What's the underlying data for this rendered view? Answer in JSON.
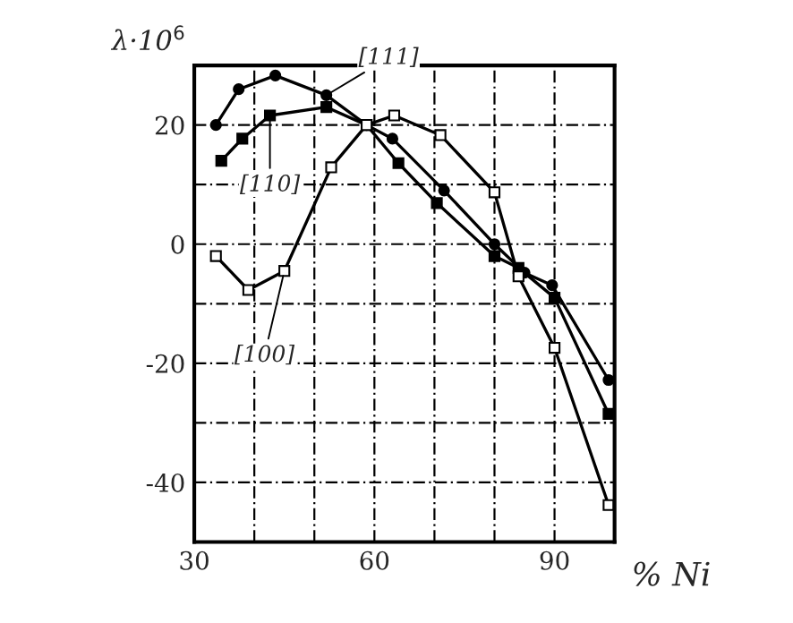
{
  "chart_data": {
    "type": "line",
    "xlabel": "% Ni",
    "ylabel": "λ·10$^{6}$",
    "xlim": [
      30,
      100
    ],
    "ylim": [
      -50,
      30
    ],
    "xticks": [
      30,
      {
        "value": 40,
        "label": null
      },
      {
        "value": 50,
        "label": null
      },
      60,
      {
        "value": 70,
        "label": null
      },
      {
        "value": 80,
        "label": null
      },
      90
    ],
    "yticks": [
      -40,
      {
        "value": -30,
        "label": null
      },
      -20,
      {
        "value": -10,
        "label": null
      },
      0,
      {
        "value": 10,
        "label": null
      },
      20
    ],
    "grid": true,
    "series": [
      {
        "name": "[111]",
        "color": "#000000",
        "marker": "circle",
        "x": [
          33.6,
          37.4,
          43.5,
          52,
          58.7,
          63,
          71.6,
          80,
          85,
          89.6,
          99
        ],
        "values": [
          20,
          26,
          28.3,
          25,
          20,
          17.7,
          9,
          0,
          -4.8,
          -6.9,
          -22.8
        ]
      },
      {
        "name": "[110]",
        "color": "#000000",
        "marker": "square",
        "x": [
          34.5,
          38,
          42.6,
          52,
          58.7,
          64,
          70.4,
          80,
          84,
          90,
          99
        ],
        "values": [
          14,
          17.7,
          21.6,
          23,
          20,
          13.6,
          6.9,
          -2,
          -4,
          -9,
          -28.5
        ]
      },
      {
        "name": "[100]",
        "color": "#000000",
        "marker": "square_open",
        "x": [
          33.6,
          39,
          45,
          52.8,
          58.7,
          63.3,
          71,
          80,
          84,
          90,
          99
        ],
        "values": [
          -2,
          -7.7,
          -4.5,
          12.9,
          20,
          21.6,
          18.3,
          8.7,
          -5.4,
          -17.4,
          -43.8
        ]
      }
    ]
  }
}
